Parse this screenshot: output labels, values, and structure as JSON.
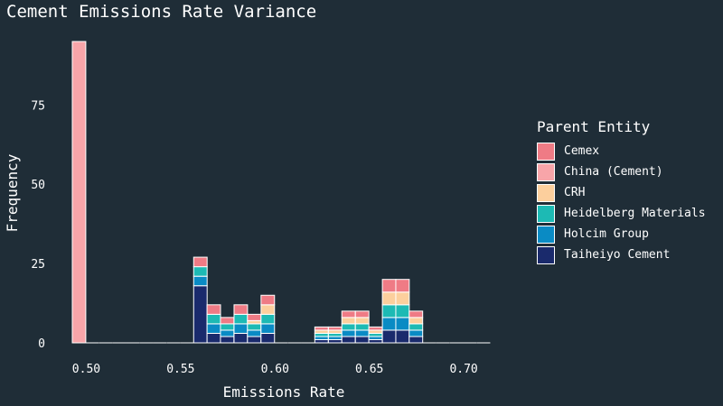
{
  "chart_data": {
    "type": "bar",
    "title": "Cement Emissions Rate Variance",
    "xlabel": "Emissions Rate",
    "ylabel": "Frequency",
    "legend_title": "Parent Entity",
    "legend_position": "right",
    "grid": false,
    "stacked": true,
    "bin_width": 0.00714,
    "xlim": [
      0.4926,
      0.7167
    ],
    "ylim": [
      0,
      95
    ],
    "x_ticks": [
      0.5,
      0.55,
      0.6,
      0.65,
      0.7
    ],
    "x_tick_labels": [
      "0.50",
      "0.55",
      "0.60",
      "0.65",
      "0.70"
    ],
    "y_ticks": [
      0,
      25,
      50,
      75
    ],
    "y_tick_labels": [
      "0",
      "25",
      "50",
      "75"
    ],
    "bin_starts": [
      0.4926,
      0.4997,
      0.5069,
      0.514,
      0.5211,
      0.5283,
      0.5354,
      0.5426,
      0.5497,
      0.5569,
      0.564,
      0.5711,
      0.5783,
      0.5854,
      0.5926,
      0.5997,
      0.6069,
      0.614,
      0.6211,
      0.6283,
      0.6354,
      0.6426,
      0.6497,
      0.6569,
      0.664,
      0.6711,
      0.6783,
      0.6854,
      0.6926,
      0.6997,
      0.7069
    ],
    "series": [
      {
        "name": "Taiheiyo Cement",
        "color": "#1a2a6c",
        "values": [
          0,
          0,
          0,
          0,
          0,
          0,
          0,
          0,
          0,
          18,
          3,
          2,
          3,
          2,
          3,
          0,
          0,
          0,
          1,
          1,
          2,
          2,
          1,
          4,
          4,
          2,
          0,
          0,
          0,
          0,
          0
        ]
      },
      {
        "name": "Holcim Group",
        "color": "#0a8bc4",
        "values": [
          0,
          0,
          0,
          0,
          0,
          0,
          0,
          0,
          0,
          3,
          3,
          2,
          3,
          2,
          3,
          0,
          0,
          0,
          1,
          1,
          2,
          2,
          1,
          4,
          4,
          2,
          0,
          0,
          0,
          0,
          0
        ]
      },
      {
        "name": "Heidelberg Materials",
        "color": "#1dbab4",
        "values": [
          0,
          0,
          0,
          0,
          0,
          0,
          0,
          0,
          0,
          3,
          3,
          2,
          3,
          2,
          3,
          0,
          0,
          0,
          1,
          1,
          2,
          2,
          1,
          4,
          4,
          2,
          0,
          0,
          0,
          0,
          0
        ]
      },
      {
        "name": "CRH",
        "color": "#fccf9d",
        "values": [
          0,
          0,
          0,
          0,
          0,
          0,
          0,
          0,
          0,
          0,
          0,
          0,
          0,
          1,
          3,
          0,
          0,
          0,
          1,
          1,
          2,
          2,
          1,
          4,
          4,
          2,
          0,
          0,
          0,
          0,
          0
        ]
      },
      {
        "name": "China (Cement)",
        "color": "#f8a5a9",
        "values": [
          95,
          0,
          0,
          0,
          0,
          0,
          0,
          0,
          0,
          0,
          0,
          0,
          0,
          0,
          0,
          0,
          0,
          0,
          0,
          0,
          0,
          0,
          0,
          0,
          0,
          0,
          0,
          0,
          0,
          0,
          0
        ]
      },
      {
        "name": "Cemex",
        "color": "#ef7b85",
        "values": [
          0,
          0,
          0,
          0,
          0,
          0,
          0,
          0,
          0,
          3,
          3,
          2,
          3,
          2,
          3,
          0,
          0,
          0,
          1,
          1,
          2,
          2,
          1,
          4,
          4,
          2,
          0,
          0,
          0,
          0,
          0
        ]
      }
    ],
    "legend_order": [
      "Cemex",
      "China (Cement)",
      "CRH",
      "Heidelberg Materials",
      "Holcim Group",
      "Taiheiyo Cement"
    ]
  }
}
